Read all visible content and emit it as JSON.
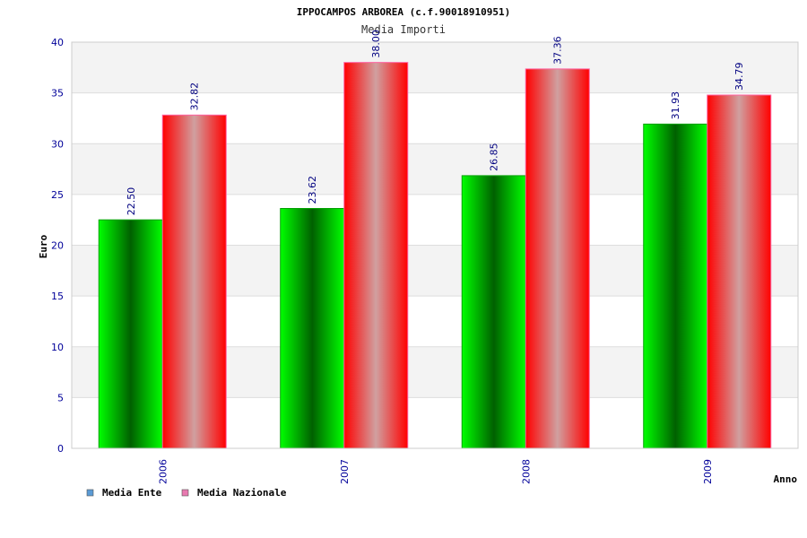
{
  "chart_data": {
    "type": "bar",
    "title": "IPPOCAMPOS ARBOREA (c.f.90018910951)",
    "subtitle": "Media Importi",
    "xlabel": "Anno",
    "ylabel": "Euro",
    "categories": [
      "2006",
      "2007",
      "2008",
      "2009"
    ],
    "ylim": [
      0,
      40
    ],
    "yticks": [
      "0",
      "5",
      "10",
      "15",
      "20",
      "25",
      "30",
      "35",
      "40"
    ],
    "grid": true,
    "legend_position": "bottom-left",
    "series": [
      {
        "name": "Media Ente",
        "values": [
          22.5,
          23.62,
          26.85,
          31.93
        ],
        "labels": [
          "22.50",
          "23.62",
          "26.85",
          "31.93"
        ],
        "color": "#00c000",
        "legend_color": "#5b9bd5"
      },
      {
        "name": "Media Nazionale",
        "values": [
          32.82,
          38.0,
          37.36,
          34.79
        ],
        "labels": [
          "32.82",
          "38.00",
          "37.36",
          "34.79"
        ],
        "color": "#ff0000",
        "legend_color": "#e879b0"
      }
    ]
  }
}
